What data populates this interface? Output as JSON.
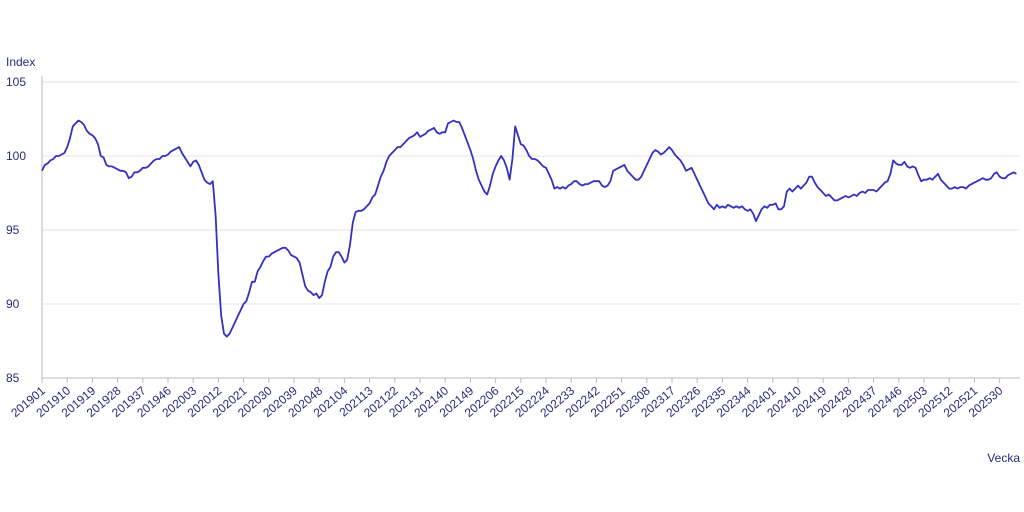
{
  "chart_data": {
    "type": "line",
    "y_label": "Index",
    "x_label": "Vecka",
    "color": "#3430c2",
    "ylim": [
      85,
      105
    ],
    "yticks": [
      85,
      90,
      95,
      100,
      105
    ],
    "grid": true,
    "categories": [
      "201901",
      null,
      null,
      null,
      null,
      null,
      null,
      null,
      null,
      "201910",
      null,
      null,
      null,
      null,
      null,
      null,
      null,
      null,
      "201919",
      null,
      null,
      null,
      null,
      null,
      null,
      null,
      null,
      "201928",
      null,
      null,
      null,
      null,
      null,
      null,
      null,
      null,
      "201937",
      null,
      null,
      null,
      null,
      null,
      null,
      null,
      null,
      "201946",
      null,
      null,
      null,
      null,
      null,
      null,
      null,
      null,
      "202003",
      null,
      null,
      null,
      null,
      null,
      null,
      null,
      null,
      "202012",
      null,
      null,
      null,
      null,
      null,
      null,
      null,
      null,
      "202021",
      null,
      null,
      null,
      null,
      null,
      null,
      null,
      null,
      "202030",
      null,
      null,
      null,
      null,
      null,
      null,
      null,
      null,
      "202039",
      null,
      null,
      null,
      null,
      null,
      null,
      null,
      null,
      "202048",
      null,
      null,
      null,
      null,
      null,
      null,
      null,
      null,
      "202104",
      null,
      null,
      null,
      null,
      null,
      null,
      null,
      null,
      "202113",
      null,
      null,
      null,
      null,
      null,
      null,
      null,
      null,
      "202122",
      null,
      null,
      null,
      null,
      null,
      null,
      null,
      null,
      "202131",
      null,
      null,
      null,
      null,
      null,
      null,
      null,
      null,
      "202140",
      null,
      null,
      null,
      null,
      null,
      null,
      null,
      null,
      "202149",
      null,
      null,
      null,
      null,
      null,
      null,
      null,
      null,
      "202206",
      null,
      null,
      null,
      null,
      null,
      null,
      null,
      null,
      "202215",
      null,
      null,
      null,
      null,
      null,
      null,
      null,
      null,
      "202224",
      null,
      null,
      null,
      null,
      null,
      null,
      null,
      null,
      "202233",
      null,
      null,
      null,
      null,
      null,
      null,
      null,
      null,
      "202242",
      null,
      null,
      null,
      null,
      null,
      null,
      null,
      null,
      "202251",
      null,
      null,
      null,
      null,
      null,
      null,
      null,
      null,
      "202308",
      null,
      null,
      null,
      null,
      null,
      null,
      null,
      null,
      "202317",
      null,
      null,
      null,
      null,
      null,
      null,
      null,
      null,
      "202326",
      null,
      null,
      null,
      null,
      null,
      null,
      null,
      null,
      "202335",
      null,
      null,
      null,
      null,
      null,
      null,
      null,
      null,
      "202344",
      null,
      null,
      null,
      null,
      null,
      null,
      null,
      null,
      "202401",
      null,
      null,
      null,
      null,
      null,
      null,
      null,
      null,
      "202410",
      null,
      null,
      null,
      null,
      null,
      null,
      null,
      null,
      "202419",
      null,
      null,
      null,
      null,
      null,
      null,
      null,
      null,
      "202428",
      null,
      null,
      null,
      null,
      null,
      null,
      null,
      null,
      "202437",
      null,
      null,
      null,
      null,
      null,
      null,
      null,
      null,
      "202446",
      null,
      null,
      null,
      null,
      null,
      null,
      null,
      null,
      "202503",
      null,
      null,
      null,
      null,
      null,
      null,
      null,
      null,
      "202512",
      null,
      null,
      null,
      null,
      null,
      null,
      null,
      null,
      "202521",
      null,
      null,
      null,
      null,
      null,
      null,
      null,
      null,
      "202530",
      null,
      null,
      null,
      null,
      null,
      null
    ],
    "values": [
      99.0,
      99.4,
      99.5,
      99.7,
      99.8,
      100.0,
      100.0,
      100.1,
      100.2,
      100.6,
      101.2,
      102.0,
      102.2,
      102.4,
      102.3,
      102.1,
      101.7,
      101.5,
      101.4,
      101.2,
      100.8,
      100.0,
      99.9,
      99.4,
      99.3,
      99.3,
      99.2,
      99.1,
      99.0,
      99.0,
      98.9,
      98.5,
      98.6,
      98.9,
      98.9,
      99.0,
      99.2,
      99.2,
      99.3,
      99.5,
      99.7,
      99.8,
      99.8,
      100.0,
      100.0,
      100.1,
      100.3,
      100.4,
      100.5,
      100.6,
      100.2,
      99.9,
      99.6,
      99.3,
      99.6,
      99.7,
      99.4,
      98.9,
      98.4,
      98.2,
      98.1,
      98.3,
      96.0,
      92.0,
      89.2,
      88.0,
      87.8,
      88.0,
      88.4,
      88.8,
      89.2,
      89.6,
      90.0,
      90.2,
      90.8,
      91.5,
      91.5,
      92.2,
      92.5,
      92.9,
      93.2,
      93.2,
      93.4,
      93.5,
      93.6,
      93.7,
      93.8,
      93.8,
      93.6,
      93.3,
      93.2,
      93.1,
      92.8,
      92.0,
      91.2,
      90.9,
      90.8,
      90.6,
      90.7,
      90.4,
      90.6,
      91.5,
      92.2,
      92.5,
      93.2,
      93.5,
      93.5,
      93.2,
      92.8,
      93.0,
      94.0,
      95.5,
      96.2,
      96.3,
      96.3,
      96.4,
      96.6,
      96.8,
      97.2,
      97.4,
      98.0,
      98.6,
      99.0,
      99.6,
      100.0,
      100.2,
      100.4,
      100.6,
      100.6,
      100.8,
      101.0,
      101.2,
      101.3,
      101.4,
      101.6,
      101.3,
      101.4,
      101.5,
      101.7,
      101.8,
      101.9,
      101.6,
      101.5,
      101.6,
      101.6,
      102.2,
      102.3,
      102.4,
      102.3,
      102.3,
      101.9,
      101.4,
      100.9,
      100.4,
      99.8,
      99.0,
      98.4,
      98.0,
      97.6,
      97.4,
      98.0,
      98.8,
      99.3,
      99.7,
      100.0,
      99.7,
      99.2,
      98.4,
      99.8,
      102.0,
      101.4,
      100.8,
      100.7,
      100.4,
      100.0,
      99.8,
      99.8,
      99.7,
      99.5,
      99.3,
      99.2,
      98.8,
      98.4,
      97.8,
      97.9,
      97.8,
      97.9,
      97.8,
      98.0,
      98.1,
      98.3,
      98.3,
      98.1,
      98.0,
      98.1,
      98.1,
      98.2,
      98.3,
      98.3,
      98.3,
      98.0,
      97.9,
      98.0,
      98.3,
      99.0,
      99.1,
      99.2,
      99.3,
      99.4,
      99.0,
      98.8,
      98.6,
      98.4,
      98.4,
      98.6,
      99.0,
      99.4,
      99.8,
      100.2,
      100.4,
      100.3,
      100.1,
      100.2,
      100.4,
      100.6,
      100.4,
      100.1,
      99.9,
      99.7,
      99.4,
      99.0,
      99.1,
      99.2,
      98.8,
      98.4,
      98.0,
      97.6,
      97.2,
      96.8,
      96.6,
      96.4,
      96.7,
      96.5,
      96.6,
      96.5,
      96.7,
      96.6,
      96.5,
      96.6,
      96.5,
      96.6,
      96.4,
      96.3,
      96.4,
      96.1,
      95.6,
      96.0,
      96.4,
      96.6,
      96.5,
      96.7,
      96.7,
      96.8,
      96.4,
      96.4,
      96.6,
      97.6,
      97.8,
      97.6,
      97.8,
      98.0,
      97.8,
      98.0,
      98.2,
      98.6,
      98.6,
      98.2,
      97.9,
      97.7,
      97.5,
      97.3,
      97.4,
      97.2,
      97.0,
      97.0,
      97.1,
      97.2,
      97.3,
      97.2,
      97.3,
      97.4,
      97.3,
      97.5,
      97.6,
      97.5,
      97.7,
      97.7,
      97.7,
      97.6,
      97.8,
      98.0,
      98.2,
      98.3,
      98.8,
      99.7,
      99.5,
      99.4,
      99.4,
      99.6,
      99.3,
      99.2,
      99.3,
      99.2,
      98.7,
      98.3,
      98.4,
      98.4,
      98.5,
      98.4,
      98.6,
      98.8,
      98.4,
      98.2,
      98.0,
      97.8,
      97.8,
      97.9,
      97.8,
      97.9,
      97.9,
      97.8,
      98.0,
      98.1,
      98.2,
      98.3,
      98.4,
      98.5,
      98.4,
      98.4,
      98.5,
      98.8,
      98.9,
      98.6,
      98.5,
      98.5,
      98.7,
      98.8,
      98.9,
      98.8
    ]
  }
}
